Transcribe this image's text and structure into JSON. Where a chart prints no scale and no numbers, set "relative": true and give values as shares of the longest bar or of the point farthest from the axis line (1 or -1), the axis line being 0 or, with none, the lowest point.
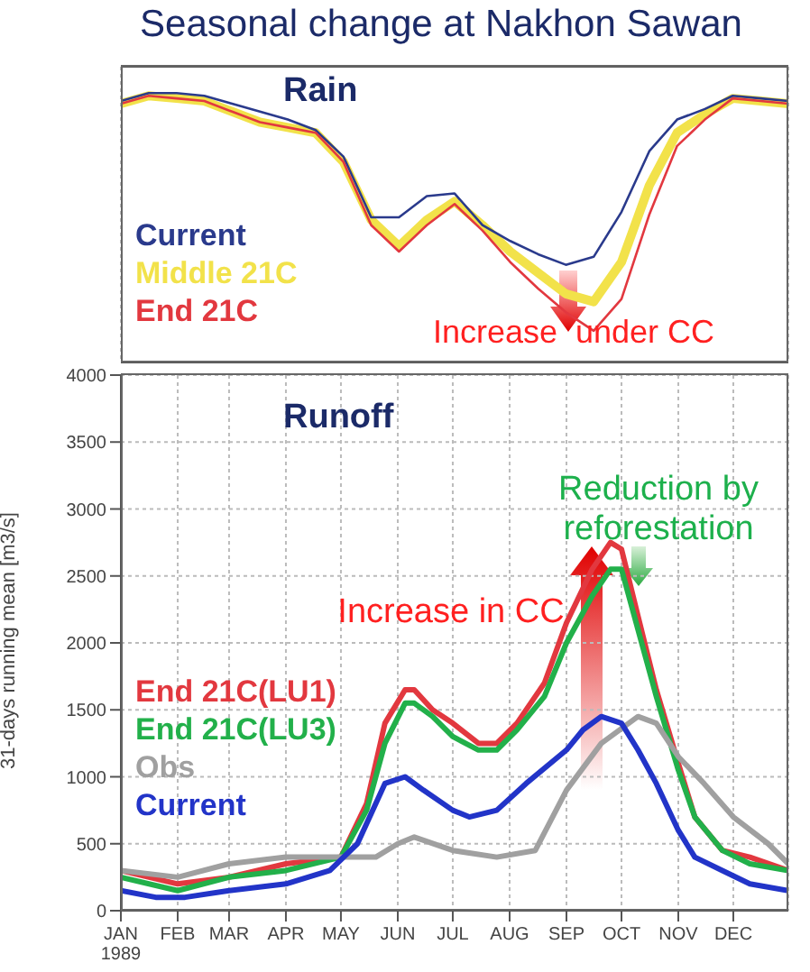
{
  "chart_data": [
    {
      "type": "line",
      "title": "Seasonal change at Nakhon Sawan",
      "subtitle": "Rain",
      "relative": true,
      "grid": "x",
      "marker": "none",
      "annotations": [
        "Increase  under CC"
      ],
      "categories": [
        null,
        null,
        null,
        null,
        null,
        null,
        null,
        null,
        null,
        null,
        null,
        null,
        null,
        null,
        null,
        null,
        null,
        null,
        null,
        null,
        null,
        null,
        null,
        null,
        null
      ],
      "series": [
        {
          "name": "Current",
          "color": "#2a3a8c",
          "values": [
            -0.13,
            -0.1,
            -0.1,
            -0.11,
            -0.14,
            -0.17,
            -0.2,
            -0.24,
            -0.34,
            -0.57,
            -0.57,
            -0.49,
            -0.48,
            -0.6,
            -0.66,
            -0.71,
            -0.75,
            -0.72,
            -0.55,
            -0.32,
            -0.2,
            -0.16,
            -0.11,
            -0.12,
            -0.13
          ]
        },
        {
          "name": "Middle 21C",
          "color": "#f2e24a",
          "values": [
            -0.14,
            -0.11,
            -0.12,
            -0.13,
            -0.17,
            -0.21,
            -0.23,
            -0.25,
            -0.36,
            -0.58,
            -0.68,
            -0.58,
            -0.51,
            -0.6,
            -0.7,
            -0.78,
            -0.86,
            -0.89,
            -0.74,
            -0.45,
            -0.25,
            -0.18,
            -0.12,
            -0.13,
            -0.14
          ]
        },
        {
          "name": "End 21C",
          "color": "#e2383f",
          "values": [
            -0.14,
            -0.11,
            -0.12,
            -0.13,
            -0.17,
            -0.21,
            -0.23,
            -0.25,
            -0.36,
            -0.6,
            -0.7,
            -0.6,
            -0.52,
            -0.62,
            -0.74,
            -0.84,
            -0.93,
            -1,
            -0.88,
            -0.56,
            -0.3,
            -0.2,
            -0.12,
            -0.13,
            -0.14
          ]
        }
      ]
    },
    {
      "type": "line",
      "title": "Runoff",
      "ylabel": "31-days running mean [m3/s]",
      "grid": true,
      "marker": "none",
      "annotations": [
        "Increase in CC",
        "Reduction by\nreforestation"
      ],
      "xlim": [
        "1989-01-01",
        "1989-12-31"
      ],
      "xticks": [
        {
          "value": "1989-01-01",
          "label": "JAN\n1989"
        },
        {
          "value": "1989-02-01",
          "label": "FEB"
        },
        {
          "value": "1989-03-01",
          "label": "MAR"
        },
        {
          "value": "1989-04-01",
          "label": "APR"
        },
        {
          "value": "1989-05-01",
          "label": "MAY"
        },
        {
          "value": "1989-06-01",
          "label": "JUN"
        },
        {
          "value": "1989-07-01",
          "label": "JUL"
        },
        {
          "value": "1989-08-01",
          "label": "AUG"
        },
        {
          "value": "1989-09-01",
          "label": "SEP"
        },
        {
          "value": "1989-10-01",
          "label": "OCT"
        },
        {
          "value": "1989-11-01",
          "label": "NOV"
        },
        {
          "value": "1989-12-01",
          "label": "DEC"
        }
      ],
      "ylim": [
        0,
        4000
      ],
      "yticks": [
        0,
        500,
        1000,
        1500,
        2000,
        2500,
        3000,
        3500,
        4000
      ],
      "series": [
        {
          "name": "End 21C(LU1)",
          "color": "#e2383f",
          "x": [
            "1989-01-01",
            "1989-02-01",
            "1989-03-01",
            "1989-04-01",
            "1989-05-01",
            "1989-05-15",
            "1989-05-25",
            "1989-06-05",
            "1989-06-10",
            "1989-06-20",
            "1989-07-01",
            "1989-07-15",
            "1989-07-25",
            "1989-08-05",
            "1989-08-20",
            "1989-09-01",
            "1989-09-15",
            "1989-09-25",
            "1989-10-01",
            "1989-10-10",
            "1989-10-20",
            "1989-11-01",
            "1989-11-10",
            "1989-11-25",
            "1989-12-10",
            "1989-12-31"
          ],
          "values": [
            300,
            200,
            250,
            350,
            400,
            800,
            1400,
            1650,
            1650,
            1500,
            1400,
            1250,
            1250,
            1400,
            1700,
            2150,
            2550,
            2750,
            2700,
            2200,
            1650,
            1100,
            700,
            450,
            400,
            300
          ]
        },
        {
          "name": "End 21C(LU3)",
          "color": "#22b04a",
          "x": [
            "1989-01-01",
            "1989-02-01",
            "1989-03-01",
            "1989-04-01",
            "1989-05-01",
            "1989-05-15",
            "1989-05-25",
            "1989-06-05",
            "1989-06-10",
            "1989-06-20",
            "1989-07-01",
            "1989-07-15",
            "1989-07-25",
            "1989-08-05",
            "1989-08-20",
            "1989-09-01",
            "1989-09-15",
            "1989-09-25",
            "1989-10-01",
            "1989-10-10",
            "1989-10-20",
            "1989-11-01",
            "1989-11-10",
            "1989-11-25",
            "1989-12-10",
            "1989-12-31"
          ],
          "values": [
            250,
            150,
            250,
            300,
            400,
            750,
            1250,
            1550,
            1550,
            1450,
            1300,
            1200,
            1200,
            1350,
            1600,
            2000,
            2350,
            2550,
            2550,
            2100,
            1600,
            1050,
            700,
            450,
            350,
            300
          ]
        },
        {
          "name": "Obs",
          "color": "#a0a0a0",
          "x": [
            "1989-01-01",
            "1989-02-01",
            "1989-03-01",
            "1989-04-01",
            "1989-05-01",
            "1989-05-20",
            "1989-06-01",
            "1989-06-10",
            "1989-07-01",
            "1989-07-25",
            "1989-08-15",
            "1989-09-01",
            "1989-09-20",
            "1989-10-10",
            "1989-10-20",
            "1989-11-01",
            "1989-11-15",
            "1989-12-01",
            "1989-12-20",
            "1989-12-31"
          ],
          "values": [
            300,
            250,
            350,
            400,
            400,
            400,
            500,
            550,
            450,
            400,
            450,
            900,
            1250,
            1450,
            1400,
            1150,
            950,
            700,
            500,
            350
          ]
        },
        {
          "name": "Current",
          "color": "#2234c8",
          "x": [
            "1989-01-01",
            "1989-01-20",
            "1989-02-05",
            "1989-03-01",
            "1989-04-01",
            "1989-04-25",
            "1989-05-10",
            "1989-05-25",
            "1989-06-05",
            "1989-06-15",
            "1989-07-01",
            "1989-07-10",
            "1989-07-25",
            "1989-08-10",
            "1989-09-01",
            "1989-09-10",
            "1989-09-20",
            "1989-10-01",
            "1989-10-10",
            "1989-10-20",
            "1989-11-01",
            "1989-11-10",
            "1989-11-25",
            "1989-12-10",
            "1989-12-31"
          ],
          "values": [
            150,
            100,
            100,
            150,
            200,
            300,
            500,
            950,
            1000,
            900,
            750,
            700,
            750,
            950,
            1200,
            1350,
            1450,
            1400,
            1200,
            950,
            600,
            400,
            300,
            200,
            150
          ]
        }
      ]
    }
  ]
}
